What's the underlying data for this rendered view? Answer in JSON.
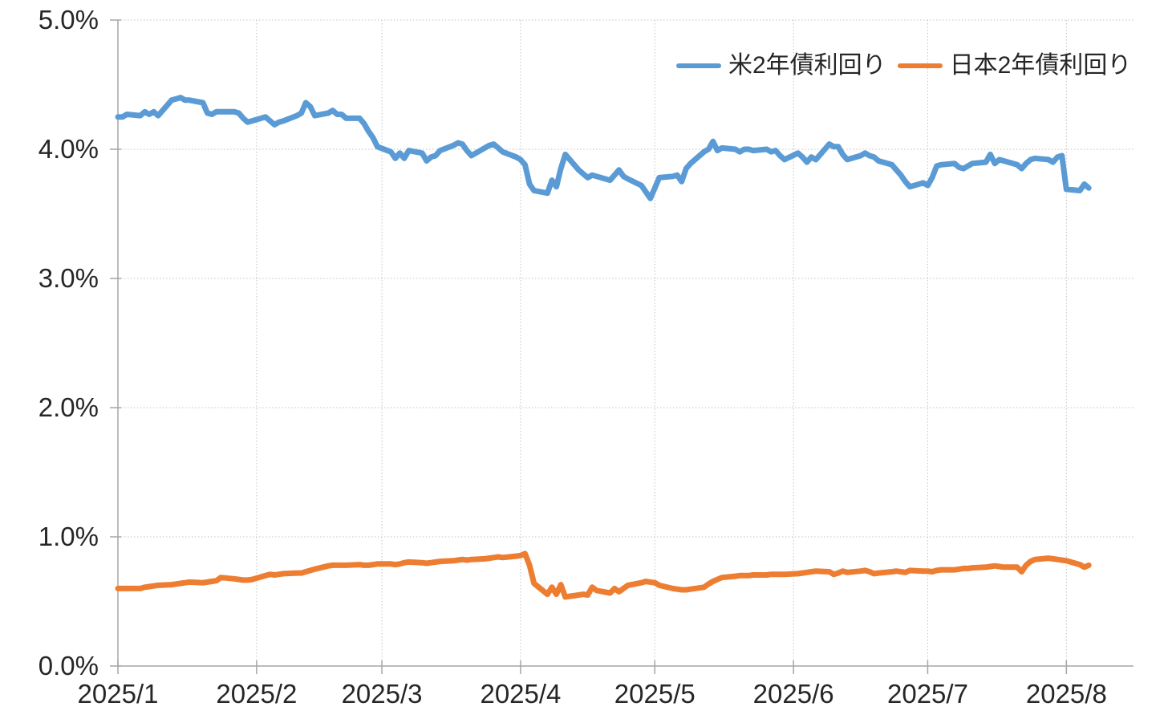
{
  "chart_data": {
    "type": "line",
    "title": "",
    "unit": "%",
    "grid": {
      "horizontal": true,
      "vertical": true,
      "style": "dotted"
    },
    "legend": {
      "position": "top-right-inside"
    },
    "colors": {
      "us_series": "#5B9BD5",
      "japan_series": "#ED7D31",
      "gridline": "#C3C3C3",
      "axis": "#A6A6A6",
      "text": "#262626"
    },
    "y_axis": {
      "min": 0,
      "max": 5,
      "tick_step": 1,
      "tick_labels": [
        "0.0%",
        "1.0%",
        "2.0%",
        "3.0%",
        "4.0%",
        "5.0%"
      ]
    },
    "x_axis": {
      "tick_labels": [
        "2025/1",
        "2025/2",
        "2025/3",
        "2025/4",
        "2025/5",
        "2025/6",
        "2025/7",
        "2025/8"
      ],
      "tick_day_offsets": [
        0,
        31,
        59,
        90,
        120,
        151,
        181,
        212
      ],
      "domain_days": [
        0,
        227
      ]
    },
    "series": [
      {
        "name": "米2年債利回り",
        "color": "#5B9BD5",
        "points": [
          [
            0,
            4.25
          ],
          [
            1,
            4.25
          ],
          [
            2,
            4.27
          ],
          [
            5,
            4.26
          ],
          [
            6,
            4.29
          ],
          [
            7,
            4.27
          ],
          [
            8,
            4.29
          ],
          [
            9,
            4.26
          ],
          [
            12,
            4.38
          ],
          [
            13,
            4.39
          ],
          [
            14,
            4.4
          ],
          [
            15,
            4.38
          ],
          [
            16,
            4.38
          ],
          [
            19,
            4.36
          ],
          [
            20,
            4.28
          ],
          [
            21,
            4.27
          ],
          [
            22,
            4.29
          ],
          [
            23,
            4.29
          ],
          [
            26,
            4.29
          ],
          [
            27,
            4.28
          ],
          [
            28,
            4.24
          ],
          [
            29,
            4.21
          ],
          [
            30,
            4.22
          ],
          [
            33,
            4.25
          ],
          [
            34,
            4.22
          ],
          [
            35,
            4.19
          ],
          [
            36,
            4.21
          ],
          [
            37,
            4.22
          ],
          [
            40,
            4.26
          ],
          [
            41,
            4.28
          ],
          [
            42,
            4.36
          ],
          [
            43,
            4.33
          ],
          [
            44,
            4.26
          ],
          [
            47,
            4.28
          ],
          [
            48,
            4.3
          ],
          [
            49,
            4.27
          ],
          [
            50,
            4.27
          ],
          [
            51,
            4.24
          ],
          [
            54,
            4.24
          ],
          [
            55,
            4.2
          ],
          [
            56,
            4.14
          ],
          [
            57,
            4.09
          ],
          [
            58,
            4.02
          ],
          [
            61,
            3.98
          ],
          [
            62,
            3.93
          ],
          [
            63,
            3.97
          ],
          [
            64,
            3.93
          ],
          [
            65,
            3.99
          ],
          [
            68,
            3.97
          ],
          [
            69,
            3.91
          ],
          [
            70,
            3.94
          ],
          [
            71,
            3.95
          ],
          [
            72,
            3.99
          ],
          [
            75,
            4.03
          ],
          [
            76,
            4.05
          ],
          [
            77,
            4.04
          ],
          [
            78,
            3.99
          ],
          [
            79,
            3.95
          ],
          [
            82,
            4.01
          ],
          [
            83,
            4.03
          ],
          [
            84,
            4.04
          ],
          [
            85,
            4.01
          ],
          [
            86,
            3.98
          ],
          [
            89,
            3.94
          ],
          [
            90,
            3.92
          ],
          [
            91,
            3.88
          ],
          [
            92,
            3.73
          ],
          [
            93,
            3.68
          ],
          [
            96,
            3.66
          ],
          [
            97,
            3.76
          ],
          [
            98,
            3.71
          ],
          [
            99,
            3.85
          ],
          [
            100,
            3.96
          ],
          [
            103,
            3.84
          ],
          [
            104,
            3.81
          ],
          [
            105,
            3.78
          ],
          [
            106,
            3.8
          ],
          [
            107,
            3.79
          ],
          [
            110,
            3.76
          ],
          [
            111,
            3.8
          ],
          [
            112,
            3.84
          ],
          [
            113,
            3.79
          ],
          [
            114,
            3.77
          ],
          [
            117,
            3.72
          ],
          [
            118,
            3.67
          ],
          [
            119,
            3.62
          ],
          [
            120,
            3.7
          ],
          [
            121,
            3.78
          ],
          [
            124,
            3.79
          ],
          [
            125,
            3.8
          ],
          [
            126,
            3.75
          ],
          [
            127,
            3.85
          ],
          [
            128,
            3.89
          ],
          [
            131,
            3.98
          ],
          [
            132,
            4.0
          ],
          [
            133,
            4.06
          ],
          [
            134,
            3.99
          ],
          [
            135,
            4.01
          ],
          [
            138,
            4.0
          ],
          [
            139,
            3.98
          ],
          [
            140,
            4.0
          ],
          [
            141,
            4.0
          ],
          [
            142,
            3.99
          ],
          [
            145,
            4.0
          ],
          [
            146,
            3.98
          ],
          [
            147,
            3.99
          ],
          [
            148,
            3.95
          ],
          [
            149,
            3.92
          ],
          [
            152,
            3.97
          ],
          [
            153,
            3.94
          ],
          [
            154,
            3.9
          ],
          [
            155,
            3.94
          ],
          [
            156,
            3.92
          ],
          [
            159,
            4.04
          ],
          [
            160,
            4.02
          ],
          [
            161,
            4.02
          ],
          [
            162,
            3.96
          ],
          [
            163,
            3.92
          ],
          [
            166,
            3.95
          ],
          [
            167,
            3.97
          ],
          [
            168,
            3.95
          ],
          [
            169,
            3.94
          ],
          [
            170,
            3.91
          ],
          [
            173,
            3.88
          ],
          [
            174,
            3.84
          ],
          [
            175,
            3.8
          ],
          [
            176,
            3.75
          ],
          [
            177,
            3.71
          ],
          [
            180,
            3.74
          ],
          [
            181,
            3.72
          ],
          [
            182,
            3.78
          ],
          [
            183,
            3.87
          ],
          [
            184,
            3.88
          ],
          [
            187,
            3.89
          ],
          [
            188,
            3.86
          ],
          [
            189,
            3.85
          ],
          [
            190,
            3.87
          ],
          [
            191,
            3.89
          ],
          [
            194,
            3.9
          ],
          [
            195,
            3.96
          ],
          [
            196,
            3.89
          ],
          [
            197,
            3.92
          ],
          [
            198,
            3.91
          ],
          [
            201,
            3.88
          ],
          [
            202,
            3.85
          ],
          [
            203,
            3.89
          ],
          [
            204,
            3.92
          ],
          [
            205,
            3.93
          ],
          [
            208,
            3.92
          ],
          [
            209,
            3.9
          ],
          [
            210,
            3.94
          ],
          [
            211,
            3.95
          ],
          [
            212,
            3.69
          ],
          [
            215,
            3.68
          ],
          [
            216,
            3.73
          ],
          [
            217,
            3.7
          ]
        ]
      },
      {
        "name": "日本2年債利回り",
        "color": "#ED7D31",
        "points": [
          [
            0,
            0.6
          ],
          [
            1,
            0.6
          ],
          [
            2,
            0.6
          ],
          [
            5,
            0.6
          ],
          [
            6,
            0.61
          ],
          [
            7,
            0.615
          ],
          [
            8,
            0.62
          ],
          [
            9,
            0.625
          ],
          [
            12,
            0.63
          ],
          [
            13,
            0.635
          ],
          [
            14,
            0.64
          ],
          [
            15,
            0.645
          ],
          [
            16,
            0.65
          ],
          [
            19,
            0.645
          ],
          [
            20,
            0.65
          ],
          [
            21,
            0.655
          ],
          [
            22,
            0.66
          ],
          [
            23,
            0.685
          ],
          [
            26,
            0.675
          ],
          [
            27,
            0.67
          ],
          [
            28,
            0.665
          ],
          [
            29,
            0.665
          ],
          [
            30,
            0.67
          ],
          [
            33,
            0.7
          ],
          [
            34,
            0.71
          ],
          [
            35,
            0.705
          ],
          [
            36,
            0.71
          ],
          [
            37,
            0.715
          ],
          [
            40,
            0.72
          ],
          [
            41,
            0.72
          ],
          [
            42,
            0.73
          ],
          [
            43,
            0.74
          ],
          [
            44,
            0.75
          ],
          [
            47,
            0.775
          ],
          [
            48,
            0.78
          ],
          [
            49,
            0.78
          ],
          [
            50,
            0.78
          ],
          [
            51,
            0.78
          ],
          [
            54,
            0.785
          ],
          [
            55,
            0.78
          ],
          [
            56,
            0.78
          ],
          [
            57,
            0.785
          ],
          [
            58,
            0.79
          ],
          [
            61,
            0.79
          ],
          [
            62,
            0.785
          ],
          [
            63,
            0.79
          ],
          [
            64,
            0.8
          ],
          [
            65,
            0.805
          ],
          [
            68,
            0.8
          ],
          [
            69,
            0.795
          ],
          [
            70,
            0.8
          ],
          [
            71,
            0.805
          ],
          [
            72,
            0.81
          ],
          [
            75,
            0.815
          ],
          [
            76,
            0.82
          ],
          [
            77,
            0.825
          ],
          [
            78,
            0.82
          ],
          [
            79,
            0.825
          ],
          [
            82,
            0.83
          ],
          [
            83,
            0.835
          ],
          [
            84,
            0.84
          ],
          [
            85,
            0.845
          ],
          [
            86,
            0.84
          ],
          [
            89,
            0.85
          ],
          [
            90,
            0.855
          ],
          [
            91,
            0.87
          ],
          [
            92,
            0.78
          ],
          [
            93,
            0.64
          ],
          [
            96,
            0.555
          ],
          [
            97,
            0.61
          ],
          [
            98,
            0.555
          ],
          [
            99,
            0.63
          ],
          [
            100,
            0.535
          ],
          [
            103,
            0.55
          ],
          [
            104,
            0.555
          ],
          [
            105,
            0.55
          ],
          [
            106,
            0.61
          ],
          [
            107,
            0.585
          ],
          [
            110,
            0.565
          ],
          [
            111,
            0.6
          ],
          [
            112,
            0.575
          ],
          [
            113,
            0.6
          ],
          [
            114,
            0.625
          ],
          [
            117,
            0.645
          ],
          [
            118,
            0.655
          ],
          [
            119,
            0.65
          ],
          [
            120,
            0.645
          ],
          [
            121,
            0.625
          ],
          [
            124,
            0.6
          ],
          [
            125,
            0.595
          ],
          [
            126,
            0.59
          ],
          [
            127,
            0.59
          ],
          [
            128,
            0.595
          ],
          [
            131,
            0.61
          ],
          [
            132,
            0.635
          ],
          [
            133,
            0.655
          ],
          [
            134,
            0.67
          ],
          [
            135,
            0.685
          ],
          [
            138,
            0.695
          ],
          [
            139,
            0.7
          ],
          [
            140,
            0.7
          ],
          [
            141,
            0.7
          ],
          [
            142,
            0.705
          ],
          [
            145,
            0.705
          ],
          [
            146,
            0.71
          ],
          [
            147,
            0.71
          ],
          [
            148,
            0.71
          ],
          [
            149,
            0.71
          ],
          [
            152,
            0.715
          ],
          [
            153,
            0.72
          ],
          [
            154,
            0.725
          ],
          [
            155,
            0.73
          ],
          [
            156,
            0.735
          ],
          [
            159,
            0.73
          ],
          [
            160,
            0.71
          ],
          [
            161,
            0.72
          ],
          [
            162,
            0.735
          ],
          [
            163,
            0.725
          ],
          [
            166,
            0.735
          ],
          [
            167,
            0.74
          ],
          [
            168,
            0.73
          ],
          [
            169,
            0.715
          ],
          [
            170,
            0.72
          ],
          [
            173,
            0.73
          ],
          [
            174,
            0.735
          ],
          [
            175,
            0.73
          ],
          [
            176,
            0.725
          ],
          [
            177,
            0.74
          ],
          [
            180,
            0.735
          ],
          [
            181,
            0.735
          ],
          [
            182,
            0.73
          ],
          [
            183,
            0.74
          ],
          [
            184,
            0.745
          ],
          [
            187,
            0.745
          ],
          [
            188,
            0.75
          ],
          [
            189,
            0.755
          ],
          [
            190,
            0.755
          ],
          [
            191,
            0.76
          ],
          [
            194,
            0.765
          ],
          [
            195,
            0.77
          ],
          [
            196,
            0.775
          ],
          [
            197,
            0.77
          ],
          [
            198,
            0.765
          ],
          [
            201,
            0.765
          ],
          [
            202,
            0.73
          ],
          [
            203,
            0.78
          ],
          [
            204,
            0.81
          ],
          [
            205,
            0.825
          ],
          [
            208,
            0.835
          ],
          [
            209,
            0.83
          ],
          [
            210,
            0.825
          ],
          [
            211,
            0.82
          ],
          [
            212,
            0.815
          ],
          [
            215,
            0.785
          ],
          [
            216,
            0.765
          ],
          [
            217,
            0.78
          ]
        ]
      }
    ]
  }
}
